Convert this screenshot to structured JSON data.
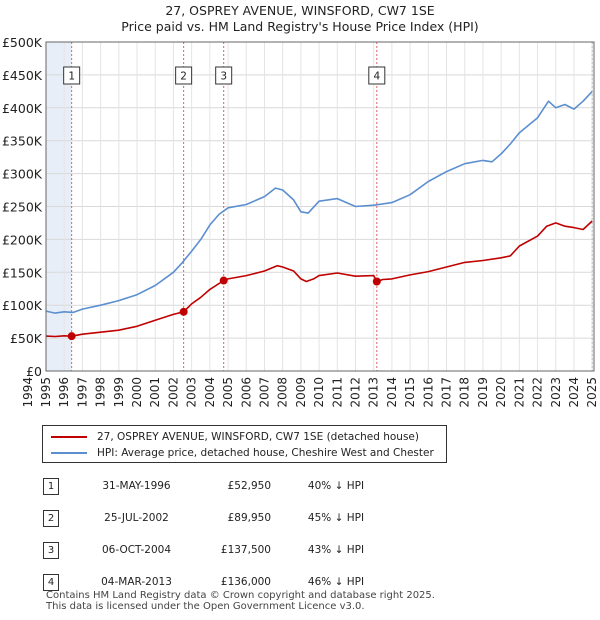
{
  "title": {
    "line1": "27, OSPREY AVENUE, WINSFORD, CW7 1SE",
    "line2": "Price paid vs. HM Land Registry's House Price Index (HPI)"
  },
  "chart_data": {
    "type": "line",
    "title": "27, OSPREY AVENUE, WINSFORD, CW7 1SE — Price paid vs. HM Land Registry's House Price Index (HPI)",
    "xlim": [
      1995,
      2025.1
    ],
    "ylim": [
      0,
      500000
    ],
    "x_ticks": [
      "1994",
      "1995",
      "1996",
      "1997",
      "1998",
      "1999",
      "2000",
      "2001",
      "2002",
      "2003",
      "2004",
      "2005",
      "2006",
      "2007",
      "2008",
      "2009",
      "2010",
      "2011",
      "2012",
      "2013",
      "2014",
      "2015",
      "2016",
      "2017",
      "2018",
      "2019",
      "2020",
      "2021",
      "2022",
      "2023",
      "2024",
      "2025"
    ],
    "y_ticks": [
      {
        "value": 0,
        "label": "£0"
      },
      {
        "value": 50000,
        "label": "£50K"
      },
      {
        "value": 100000,
        "label": "£100K"
      },
      {
        "value": 150000,
        "label": "£150K"
      },
      {
        "value": 200000,
        "label": "£200K"
      },
      {
        "value": 250000,
        "label": "£250K"
      },
      {
        "value": 300000,
        "label": "£300K"
      },
      {
        "value": 350000,
        "label": "£350K"
      },
      {
        "value": 400000,
        "label": "£400K"
      },
      {
        "value": 450000,
        "label": "£450K"
      },
      {
        "value": 500000,
        "label": "£500K"
      }
    ],
    "shaded_range": [
      1995,
      1996.41
    ],
    "series": [
      {
        "name": "27, OSPREY AVENUE, WINSFORD, CW7 1SE (detached house)",
        "color": "#c00000",
        "points": [
          [
            1995,
            53000
          ],
          [
            1995.5,
            52500
          ],
          [
            1996,
            53500
          ],
          [
            1996.41,
            52950
          ],
          [
            1997,
            56000
          ],
          [
            1998,
            59000
          ],
          [
            1999,
            62000
          ],
          [
            2000,
            68000
          ],
          [
            2001,
            77000
          ],
          [
            2002,
            86000
          ],
          [
            2002.56,
            89950
          ],
          [
            2003,
            102000
          ],
          [
            2003.5,
            112000
          ],
          [
            2004,
            124000
          ],
          [
            2004.76,
            137500
          ],
          [
            2005,
            140000
          ],
          [
            2006,
            145000
          ],
          [
            2007,
            152000
          ],
          [
            2007.7,
            160000
          ],
          [
            2008,
            158000
          ],
          [
            2008.6,
            152000
          ],
          [
            2009,
            140000
          ],
          [
            2009.3,
            136000
          ],
          [
            2009.7,
            140000
          ],
          [
            2010,
            145000
          ],
          [
            2011,
            149000
          ],
          [
            2012,
            144000
          ],
          [
            2013,
            145000
          ],
          [
            2013.17,
            136000
          ],
          [
            2013.5,
            139000
          ],
          [
            2014,
            140000
          ],
          [
            2015,
            146000
          ],
          [
            2016,
            151000
          ],
          [
            2017,
            158000
          ],
          [
            2018,
            165000
          ],
          [
            2019,
            168000
          ],
          [
            2020,
            172000
          ],
          [
            2020.5,
            175000
          ],
          [
            2021,
            190000
          ],
          [
            2022,
            205000
          ],
          [
            2022.5,
            220000
          ],
          [
            2023,
            225000
          ],
          [
            2023.5,
            220000
          ],
          [
            2024,
            218000
          ],
          [
            2024.5,
            215000
          ],
          [
            2025,
            228000
          ]
        ]
      },
      {
        "name": "HPI: Average price, detached house, Cheshire West and Chester",
        "color": "#5b8fd0",
        "points": [
          [
            1995,
            91000
          ],
          [
            1995.5,
            88000
          ],
          [
            1996,
            90000
          ],
          [
            1996.5,
            89000
          ],
          [
            1997,
            94000
          ],
          [
            1998,
            100000
          ],
          [
            1999,
            107000
          ],
          [
            2000,
            116000
          ],
          [
            2001,
            130000
          ],
          [
            2002,
            150000
          ],
          [
            2002.5,
            165000
          ],
          [
            2003,
            182000
          ],
          [
            2003.5,
            200000
          ],
          [
            2004,
            222000
          ],
          [
            2004.5,
            238000
          ],
          [
            2005,
            248000
          ],
          [
            2006,
            253000
          ],
          [
            2007,
            265000
          ],
          [
            2007.6,
            278000
          ],
          [
            2008,
            275000
          ],
          [
            2008.6,
            260000
          ],
          [
            2009,
            242000
          ],
          [
            2009.4,
            240000
          ],
          [
            2009.8,
            252000
          ],
          [
            2010,
            258000
          ],
          [
            2011,
            262000
          ],
          [
            2012,
            250000
          ],
          [
            2013,
            252000
          ],
          [
            2014,
            256000
          ],
          [
            2015,
            268000
          ],
          [
            2016,
            288000
          ],
          [
            2017,
            303000
          ],
          [
            2018,
            315000
          ],
          [
            2019,
            320000
          ],
          [
            2019.5,
            318000
          ],
          [
            2020,
            330000
          ],
          [
            2020.5,
            345000
          ],
          [
            2021,
            362000
          ],
          [
            2022,
            385000
          ],
          [
            2022.6,
            410000
          ],
          [
            2023,
            400000
          ],
          [
            2023.5,
            405000
          ],
          [
            2024,
            398000
          ],
          [
            2024.5,
            410000
          ],
          [
            2025,
            425000
          ]
        ]
      }
    ],
    "sales": [
      {
        "label": "1",
        "x": 1996.41,
        "y": 52950
      },
      {
        "label": "2",
        "x": 2002.56,
        "y": 89950
      },
      {
        "label": "3",
        "x": 2004.76,
        "y": 137500
      },
      {
        "label": "4",
        "x": 2013.17,
        "y": 136000
      }
    ],
    "colors": {
      "property": "#c00000",
      "hpi": "#5b8fd0",
      "marker_line": "#e06060",
      "shade": "#e8eef8"
    }
  },
  "legend": {
    "property_label": "27, OSPREY AVENUE, WINSFORD, CW7 1SE (detached house)",
    "hpi_label": "HPI: Average price, detached house, Cheshire West and Chester"
  },
  "table": {
    "rows": [
      {
        "num": "1",
        "date": "31-MAY-1996",
        "price": "£52,950",
        "hpi": "40% ↓ HPI"
      },
      {
        "num": "2",
        "date": "25-JUL-2002",
        "price": "£89,950",
        "hpi": "45% ↓ HPI"
      },
      {
        "num": "3",
        "date": "06-OCT-2004",
        "price": "£137,500",
        "hpi": "43% ↓ HPI"
      },
      {
        "num": "4",
        "date": "04-MAR-2013",
        "price": "£136,000",
        "hpi": "46% ↓ HPI"
      }
    ]
  },
  "footer": {
    "line1": "Contains HM Land Registry data © Crown copyright and database right 2025.",
    "line2": "This data is licensed under the Open Government Licence v3.0."
  }
}
